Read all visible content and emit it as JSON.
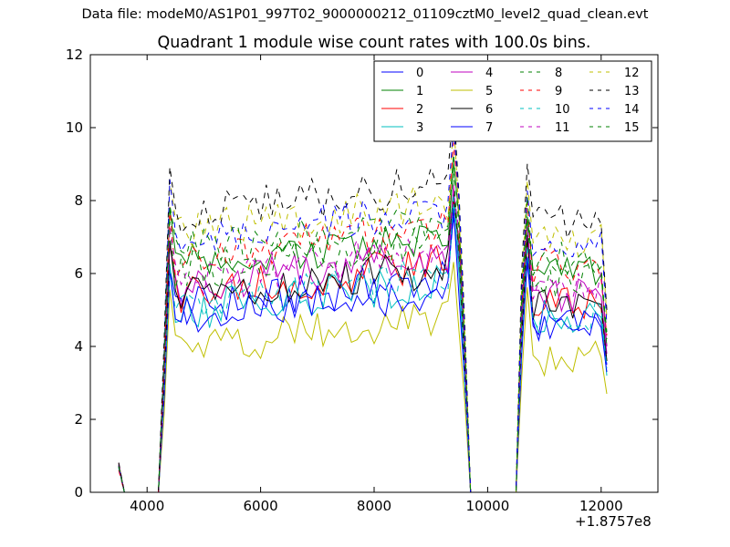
{
  "suptitle": "Data file: modeM0/AS1P01_997T02_9000000212_01109cztM0_level2_quad_clean.evt",
  "chart_data": {
    "type": "line",
    "title": "Quadrant 1 module wise count rates with 100.0s bins.",
    "xlabel": "",
    "ylabel": "",
    "x_offset_label": "+1.8757e8",
    "xlim": [
      3000,
      13000
    ],
    "ylim": [
      0,
      12
    ],
    "xticks": [
      4000,
      6000,
      8000,
      10000,
      12000
    ],
    "yticks": [
      0,
      2,
      4,
      6,
      8,
      10,
      12
    ],
    "grid": false,
    "legend_position": "top-right",
    "legend_columns": 4,
    "segments": [
      {
        "x_start": 3500,
        "x_end": 4200
      },
      {
        "x_start": 4200,
        "x_end": 9800
      },
      {
        "x_start": 10500,
        "x_end": 12100
      }
    ],
    "series": [
      {
        "name": "0",
        "color": "#0000ff",
        "dashed": false,
        "level": 5.0,
        "end": 3.5
      },
      {
        "name": "1",
        "color": "#008000",
        "dashed": false,
        "level": 6.2,
        "end": 4.0
      },
      {
        "name": "2",
        "color": "#ff0000",
        "dashed": false,
        "level": 5.4,
        "end": 3.6
      },
      {
        "name": "3",
        "color": "#00bfbf",
        "dashed": false,
        "level": 4.9,
        "end": 3.2
      },
      {
        "name": "4",
        "color": "#bf00bf",
        "dashed": false,
        "level": 5.6,
        "end": 3.8
      },
      {
        "name": "5",
        "color": "#bfbf00",
        "dashed": false,
        "level": 3.9,
        "end": 2.7
      },
      {
        "name": "6",
        "color": "#000000",
        "dashed": false,
        "level": 5.3,
        "end": 3.6
      },
      {
        "name": "7",
        "color": "#0000ff",
        "dashed": false,
        "level": 4.7,
        "end": 3.3
      },
      {
        "name": "8",
        "color": "#008000",
        "dashed": true,
        "level": 6.0,
        "end": 4.2
      },
      {
        "name": "9",
        "color": "#ff0000",
        "dashed": true,
        "level": 6.4,
        "end": 4.3
      },
      {
        "name": "10",
        "color": "#00bfbf",
        "dashed": true,
        "level": 5.1,
        "end": 3.4
      },
      {
        "name": "11",
        "color": "#bf00bf",
        "dashed": true,
        "level": 5.8,
        "end": 4.0
      },
      {
        "name": "12",
        "color": "#bfbf00",
        "dashed": true,
        "level": 7.1,
        "end": 4.8
      },
      {
        "name": "13",
        "color": "#000000",
        "dashed": true,
        "level": 7.6,
        "end": 5.0
      },
      {
        "name": "14",
        "color": "#0000ff",
        "dashed": true,
        "level": 6.9,
        "end": 4.6
      },
      {
        "name": "15",
        "color": "#008000",
        "dashed": true,
        "level": 6.6,
        "end": 4.4
      }
    ]
  }
}
